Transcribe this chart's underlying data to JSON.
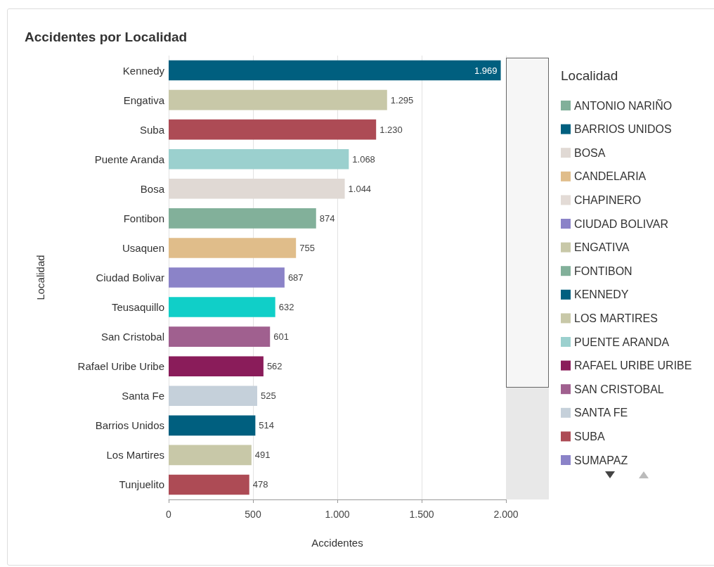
{
  "chart_data": {
    "type": "bar",
    "title": "Accidentes por Localidad",
    "xlabel": "Accidentes",
    "ylabel": "Localidad",
    "legend_title": "Localidad",
    "orientation": "horizontal",
    "stacked": true,
    "grid": "x",
    "legend": "right",
    "categories": [
      "Kennedy",
      "Engativa",
      "Suba",
      "Puente Aranda",
      "Bosa",
      "Fontibon",
      "Usaquen",
      "Ciudad Bolivar",
      "Teusaquillo",
      "San Cristobal",
      "Rafael Uribe Uribe",
      "Santa Fe",
      "Barrios Unidos",
      "Los Martires",
      "Tunjuelito"
    ],
    "xlim": [
      0,
      2000
    ],
    "xticks": [
      0,
      500,
      {
        "value": 1000,
        "label": "1.000"
      },
      {
        "value": 1500,
        "label": "1.500"
      },
      {
        "value": 2000,
        "label": "2.000"
      }
    ],
    "series": [
      {
        "name": "ANTONIO NARIÑO",
        "color": "#82b09a",
        "values": [
          null,
          null,
          null,
          null,
          null,
          null,
          null,
          null,
          null,
          null,
          null,
          null,
          null,
          null,
          null
        ]
      },
      {
        "name": "BARRIOS UNIDOS",
        "color": "#005f7f",
        "values": [
          null,
          null,
          null,
          null,
          null,
          null,
          null,
          null,
          null,
          null,
          null,
          null,
          514,
          null,
          null
        ],
        "value_labels": [
          null,
          null,
          null,
          null,
          null,
          null,
          null,
          null,
          null,
          null,
          null,
          null,
          "514",
          null,
          null
        ]
      },
      {
        "name": "BOSA",
        "color": "#e0d9d4",
        "values": [
          null,
          null,
          null,
          null,
          1044,
          null,
          null,
          null,
          null,
          null,
          null,
          null,
          null,
          null,
          null
        ],
        "value_labels": [
          null,
          null,
          null,
          null,
          "1.044",
          null,
          null,
          null,
          null,
          null,
          null,
          null,
          null,
          null,
          null
        ]
      },
      {
        "name": "CANDELARIA",
        "color": "#e0bd8a",
        "values": [
          null,
          null,
          null,
          null,
          null,
          null,
          null,
          null,
          null,
          null,
          null,
          null,
          null,
          null,
          null
        ]
      },
      {
        "name": "CHAPINERO",
        "color": "#e3dbd6",
        "values": [
          null,
          null,
          null,
          null,
          null,
          null,
          null,
          null,
          null,
          null,
          null,
          null,
          null,
          null,
          null
        ]
      },
      {
        "name": "CIUDAD BOLIVAR",
        "color": "#8b83c8",
        "values": [
          null,
          null,
          null,
          null,
          null,
          null,
          null,
          687,
          null,
          null,
          null,
          null,
          null,
          null,
          null
        ],
        "value_labels": [
          null,
          null,
          null,
          null,
          null,
          null,
          null,
          "687",
          null,
          null,
          null,
          null,
          null,
          null,
          null
        ]
      },
      {
        "name": "ENGATIVA",
        "color": "#c8c8a8",
        "values": [
          null,
          1295,
          null,
          null,
          null,
          null,
          null,
          null,
          null,
          null,
          null,
          null,
          null,
          null,
          null
        ],
        "value_labels": [
          null,
          "1.295",
          null,
          null,
          null,
          null,
          null,
          null,
          null,
          null,
          null,
          null,
          null,
          null,
          null
        ]
      },
      {
        "name": "FONTIBON",
        "color": "#82b09a",
        "values": [
          null,
          null,
          null,
          null,
          null,
          874,
          null,
          null,
          null,
          null,
          null,
          null,
          null,
          null,
          null
        ],
        "value_labels": [
          null,
          null,
          null,
          null,
          null,
          "874",
          null,
          null,
          null,
          null,
          null,
          null,
          null,
          null,
          null
        ]
      },
      {
        "name": "KENNEDY",
        "color": "#005f7f",
        "values": [
          1969,
          null,
          null,
          null,
          null,
          null,
          null,
          null,
          null,
          null,
          null,
          null,
          null,
          null,
          null
        ],
        "value_labels": [
          "1.969",
          null,
          null,
          null,
          null,
          null,
          null,
          null,
          null,
          null,
          null,
          null,
          null,
          null,
          null
        ]
      },
      {
        "name": "LOS MARTIRES",
        "color": "#c8c8a8",
        "values": [
          null,
          null,
          null,
          null,
          null,
          null,
          null,
          null,
          null,
          null,
          null,
          null,
          null,
          491,
          null
        ],
        "value_labels": [
          null,
          null,
          null,
          null,
          null,
          null,
          null,
          null,
          null,
          null,
          null,
          null,
          null,
          "491",
          null
        ]
      },
      {
        "name": "PUENTE ARANDA",
        "color": "#9bd0ce",
        "values": [
          null,
          null,
          null,
          1068,
          null,
          null,
          null,
          null,
          null,
          null,
          null,
          null,
          null,
          null,
          null
        ],
        "value_labels": [
          null,
          null,
          null,
          "1.068",
          null,
          null,
          null,
          null,
          null,
          null,
          null,
          null,
          null,
          null,
          null
        ]
      },
      {
        "name": "RAFAEL URIBE URIBE",
        "color": "#8a1c5a",
        "values": [
          null,
          null,
          null,
          null,
          null,
          null,
          null,
          null,
          null,
          null,
          562,
          null,
          null,
          null,
          null
        ],
        "value_labels": [
          null,
          null,
          null,
          null,
          null,
          null,
          null,
          null,
          null,
          null,
          "562",
          null,
          null,
          null,
          null
        ]
      },
      {
        "name": "SAN CRISTOBAL",
        "color": "#a0608f",
        "values": [
          null,
          null,
          null,
          null,
          null,
          null,
          null,
          null,
          null,
          601,
          null,
          null,
          null,
          null,
          null
        ],
        "value_labels": [
          null,
          null,
          null,
          null,
          null,
          null,
          null,
          null,
          null,
          "601",
          null,
          null,
          null,
          null,
          null
        ]
      },
      {
        "name": "SANTA FE",
        "color": "#c5d0da",
        "values": [
          null,
          null,
          null,
          null,
          null,
          null,
          null,
          null,
          null,
          null,
          null,
          525,
          null,
          null,
          null
        ],
        "value_labels": [
          null,
          null,
          null,
          null,
          null,
          null,
          null,
          null,
          null,
          null,
          null,
          "525",
          null,
          null,
          null
        ]
      },
      {
        "name": "SUBA",
        "color": "#ad4b55",
        "values": [
          null,
          null,
          1230,
          null,
          null,
          null,
          null,
          null,
          null,
          null,
          null,
          null,
          null,
          null,
          null
        ],
        "value_labels": [
          null,
          null,
          "1.230",
          null,
          null,
          null,
          null,
          null,
          null,
          null,
          null,
          null,
          null,
          null,
          null
        ]
      },
      {
        "name": "SUMAPAZ",
        "color": "#8b83c8",
        "values": [
          null,
          null,
          null,
          null,
          null,
          null,
          null,
          null,
          null,
          null,
          null,
          null,
          null,
          null,
          null
        ]
      },
      {
        "color": "#e0bd8a",
        "values": [
          null,
          null,
          null,
          null,
          null,
          null,
          755,
          null,
          null,
          null,
          null,
          null,
          null,
          null,
          null
        ],
        "value_labels": [
          null,
          null,
          null,
          null,
          null,
          null,
          "755",
          null,
          null,
          null,
          null,
          null,
          null,
          null,
          null
        ]
      },
      {
        "color": "#10cfc8",
        "values": [
          null,
          null,
          null,
          null,
          null,
          null,
          null,
          null,
          632,
          null,
          null,
          null,
          null,
          null,
          null
        ],
        "value_labels": [
          null,
          null,
          null,
          null,
          null,
          null,
          null,
          null,
          "632",
          null,
          null,
          null,
          null,
          null,
          null
        ]
      },
      {
        "color": "#ad4b55",
        "values": [
          null,
          null,
          null,
          null,
          null,
          null,
          null,
          null,
          null,
          null,
          null,
          null,
          null,
          null,
          478
        ],
        "value_labels": [
          null,
          null,
          null,
          null,
          null,
          null,
          null,
          null,
          null,
          null,
          null,
          null,
          null,
          null,
          "478"
        ]
      }
    ]
  }
}
